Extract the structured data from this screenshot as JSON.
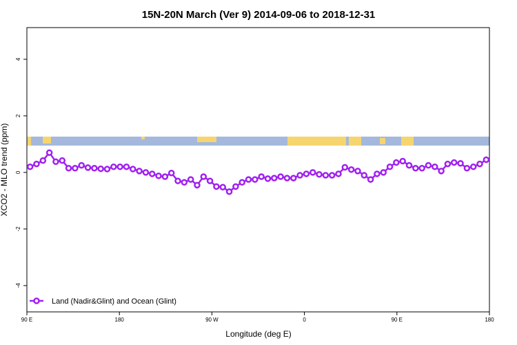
{
  "chart_data": {
    "type": "line",
    "title": "15N-20N March (Ver 9)   2014-09-06 to 2018-12-31",
    "x_label": "Longitude (deg E)",
    "y_label": "XCO2 - MLO trend (ppm)",
    "xlim": [
      90,
      450
    ],
    "xticks": [
      {
        "value": 90,
        "label": "90 E"
      },
      {
        "value": 162,
        "label": "180"
      },
      {
        "value": 234,
        "label": "90 W"
      },
      {
        "value": 306,
        "label": "0"
      },
      {
        "value": 378,
        "label": "90 E"
      },
      {
        "value": 450,
        "label": "180"
      }
    ],
    "ylim": [
      -4.93,
      5.12
    ],
    "yticks": [
      -4,
      -2,
      0,
      2,
      4
    ],
    "legend": "bottom-left",
    "x": [
      92.5,
      97.5,
      102.5,
      107.5,
      112.5,
      117.5,
      122.5,
      127.5,
      132.5,
      137.5,
      142.5,
      147.5,
      152.5,
      157.5,
      162.5,
      167.5,
      172.5,
      177.5,
      182.5,
      187.5,
      192.5,
      197.5,
      202.5,
      207.5,
      212.5,
      217.5,
      222.5,
      227.5,
      232.5,
      237.5,
      242.5,
      247.5,
      252.5,
      257.5,
      262.5,
      267.5,
      272.5,
      277.5,
      282.5,
      287.5,
      292.5,
      297.5,
      302.5,
      307.5,
      312.5,
      317.5,
      322.5,
      327.5,
      332.5,
      337.5,
      342.5,
      347.5,
      352.5,
      357.5,
      362.5,
      367.5,
      372.5,
      377.5,
      382.5,
      387.5,
      392.5,
      397.5,
      402.5,
      407.5,
      412.5,
      417.5,
      422.5,
      427.5,
      432.5,
      437.5,
      442.5,
      447.5
    ],
    "series": [
      {
        "name": "Land (Nadir&Glint) and Ocean (Glint)",
        "color": "#a020f0",
        "values": [
          0.2,
          0.3,
          0.42,
          0.7,
          0.38,
          0.42,
          0.15,
          0.15,
          0.25,
          0.17,
          0.15,
          0.13,
          0.12,
          0.2,
          0.2,
          0.2,
          0.12,
          0.05,
          0,
          -0.05,
          -0.12,
          -0.15,
          -0.02,
          -0.3,
          -0.35,
          -0.25,
          -0.45,
          -0.15,
          -0.3,
          -0.5,
          -0.52,
          -0.68,
          -0.5,
          -0.35,
          -0.25,
          -0.25,
          -0.15,
          -0.22,
          -0.2,
          -0.15,
          -0.2,
          -0.2,
          -0.1,
          -0.05,
          0,
          -0.07,
          -0.1,
          -0.1,
          -0.05,
          0.18,
          0.1,
          0.05,
          -0.1,
          -0.25,
          -0.05,
          0,
          0.2,
          0.35,
          0.4,
          0.25,
          0.15,
          0.15,
          0.25,
          0.2,
          0.05,
          0.3,
          0.35,
          0.32,
          0.15,
          0.2,
          0.3,
          0.45
        ]
      }
    ]
  }
}
